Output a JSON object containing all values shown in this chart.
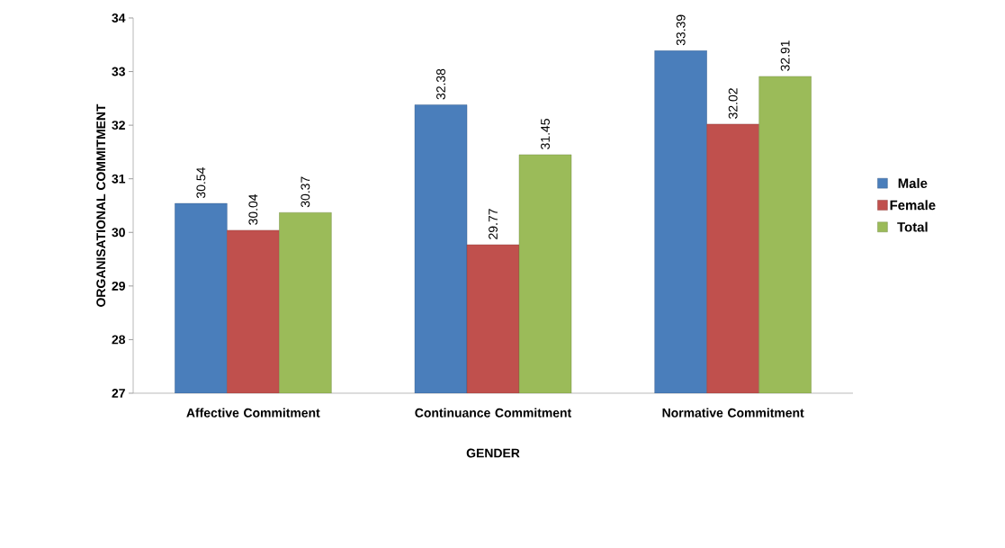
{
  "chart_data": {
    "type": "bar",
    "xlabel": "GENDER",
    "ylabel": "ORGANISATIONAL COMMITMENT",
    "categories": [
      "Affective Commitment",
      "Continuance Commitment",
      "Normative Commitment"
    ],
    "series": [
      {
        "name": "Male",
        "color": "#4a7ebb",
        "values": [
          30.54,
          32.38,
          33.39
        ]
      },
      {
        "name": "Female",
        "color": "#c0504d",
        "values": [
          30.04,
          29.77,
          32.02
        ]
      },
      {
        "name": "Total",
        "color": "#9bbb59",
        "values": [
          30.37,
          31.45,
          32.91
        ]
      }
    ],
    "ylim": [
      27,
      34
    ],
    "yticks": [
      27,
      28,
      29,
      30,
      31,
      32,
      33,
      34
    ],
    "data_labels": true,
    "legend": "right",
    "grid": false
  }
}
